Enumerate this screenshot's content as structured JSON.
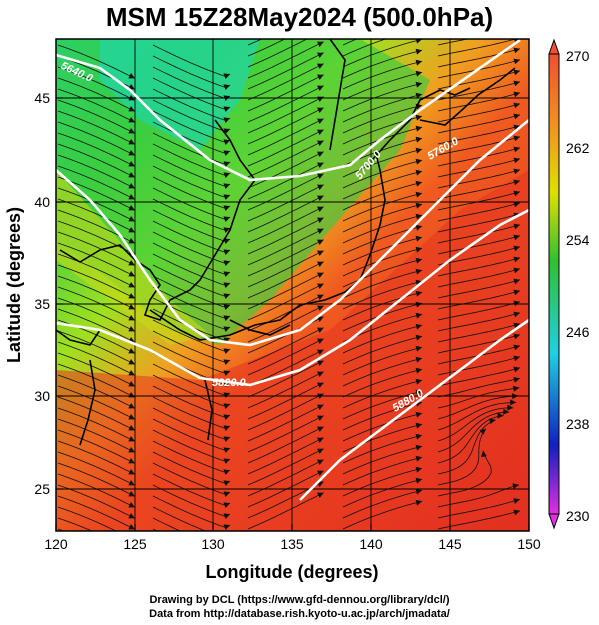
{
  "title": "MSM 15Z28May2024 (500.0hPa)",
  "xlabel": "Longitude (degrees)",
  "ylabel": "Latitude  (degrees)",
  "x_ticks": [
    "120",
    "125",
    "130",
    "135",
    "140",
    "145",
    "150"
  ],
  "y_ticks": [
    "45",
    "40",
    "35",
    "30",
    "25"
  ],
  "colorbar": {
    "ticks": [
      "270",
      "262",
      "254",
      "246",
      "238",
      "230"
    ],
    "min": 230,
    "max": 270
  },
  "contour_labels": [
    "5640.0",
    "5700.0",
    "5760.0",
    "5820.0",
    "5880.0"
  ],
  "footer": {
    "line1": "Drawing by DCL (https://www.gfd-dennou.org/library/dcl/)",
    "line2": "Data from http://database.rish.kyoto-u.ac.jp/arch/jmadata/"
  },
  "chart_data": {
    "type": "heatmap",
    "title": "MSM 15Z28May2024 (500.0hPa)",
    "xlabel": "Longitude (degrees)",
    "ylabel": "Latitude  (degrees)",
    "xlim": [
      120,
      150
    ],
    "ylim": [
      22.5,
      47.6
    ],
    "colorbar_range": [
      230,
      270
    ],
    "colormap": [
      "#e040e0",
      "#2030d0",
      "#20d0e0",
      "#30c020",
      "#e0e000",
      "#f08020",
      "#e02020"
    ],
    "grid": true,
    "overlays": [
      "wind streamlines",
      "geopotential height contours (white)",
      "coastlines (black)"
    ]
  }
}
